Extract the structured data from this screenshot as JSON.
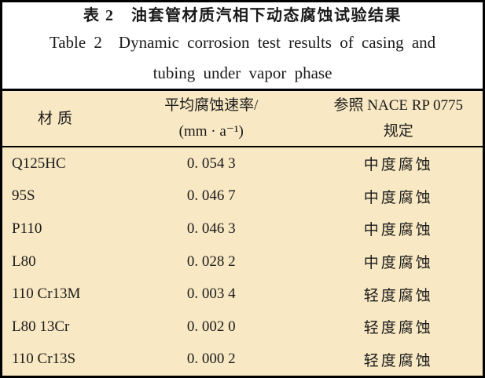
{
  "page": {
    "background": "#ffffff",
    "table_background": "#f8e8c3",
    "rule_color": "#000000",
    "text_color": "#1b1b1b"
  },
  "title": {
    "zh": "表 2　油套管材质汽相下动态腐蚀试验结果",
    "en_line1": "Table 2 Dynamic corrosion test results of casing and",
    "en_line2": "tubing under vapor phase"
  },
  "table": {
    "columns": [
      {
        "line1": "材质",
        "line2": ""
      },
      {
        "line1": "平均腐蚀速率/",
        "line2": "(mm · a⁻¹)"
      },
      {
        "line1": "参照 NACE RP 0775",
        "line2": "规定"
      }
    ],
    "rows": [
      {
        "material": "Q125HC",
        "rate": "0. 054 3",
        "grade": "中度腐蚀"
      },
      {
        "material": "95S",
        "rate": "0. 046 7",
        "grade": "中度腐蚀"
      },
      {
        "material": "P110",
        "rate": "0. 046 3",
        "grade": "中度腐蚀"
      },
      {
        "material": "L80",
        "rate": "0. 028 2",
        "grade": "中度腐蚀"
      },
      {
        "material": "110 Cr13M",
        "rate": "0. 003 4",
        "grade": "轻度腐蚀"
      },
      {
        "material": "L80 13Cr",
        "rate": "0. 002 0",
        "grade": "轻度腐蚀"
      },
      {
        "material": "110 Cr13S",
        "rate": "0. 000 2",
        "grade": "轻度腐蚀"
      }
    ]
  }
}
